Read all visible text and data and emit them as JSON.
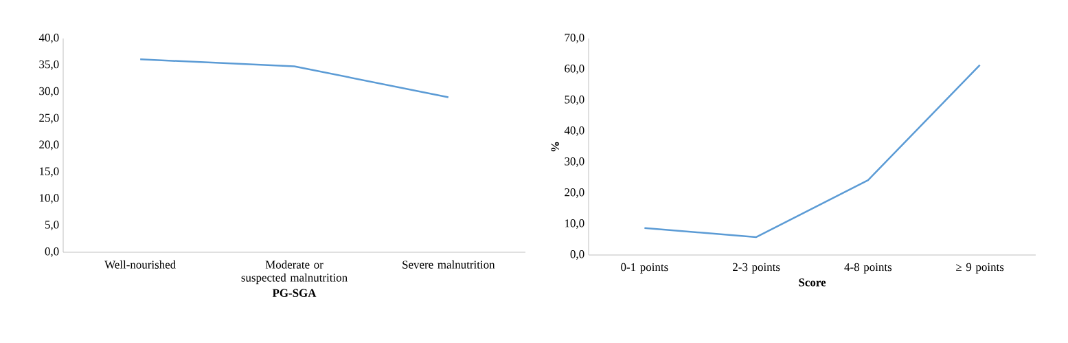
{
  "chart_data": [
    {
      "type": "line",
      "categories": [
        "Well-nourished",
        "Moderate or suspected malnutrition",
        "Severe malnutrition"
      ],
      "xlabel": "PG-SGA",
      "series": [
        {
          "color": "#5b9bd5",
          "values": [
            36.1,
            34.8,
            29.0
          ]
        }
      ],
      "ylim": [
        0,
        40
      ],
      "yticks": [
        {
          "value": 0,
          "label": "0,0"
        },
        {
          "value": 5,
          "label": "5,0"
        },
        {
          "value": 10,
          "label": "10,0"
        },
        {
          "value": 15,
          "label": "15,0"
        },
        {
          "value": 20,
          "label": "20,0"
        },
        {
          "value": 25,
          "label": "25,0"
        },
        {
          "value": 30,
          "label": "30,0"
        },
        {
          "value": 35,
          "label": "35,0"
        },
        {
          "value": 40,
          "label": "40,0"
        }
      ],
      "grid": false,
      "marker": "none",
      "line_style": "solid"
    },
    {
      "type": "line",
      "categories": [
        "0-1 points",
        "2-3 points",
        "4-8 points",
        "≥ 9 points"
      ],
      "xlabel": "Score",
      "ylabel": "%",
      "series": [
        {
          "color": "#5b9bd5",
          "values": [
            8.7,
            5.8,
            24.2,
            61.4
          ]
        }
      ],
      "ylim": [
        0,
        70
      ],
      "yticks": [
        {
          "value": 0,
          "label": "0,0"
        },
        {
          "value": 10,
          "label": "10,0"
        },
        {
          "value": 20,
          "label": "20,0"
        },
        {
          "value": 30,
          "label": "30,0"
        },
        {
          "value": 40,
          "label": "40,0"
        },
        {
          "value": 50,
          "label": "50,0"
        },
        {
          "value": 60,
          "label": "60,0"
        },
        {
          "value": 70,
          "label": "70,0"
        }
      ],
      "grid": false,
      "marker": "none",
      "line_style": "solid"
    }
  ]
}
